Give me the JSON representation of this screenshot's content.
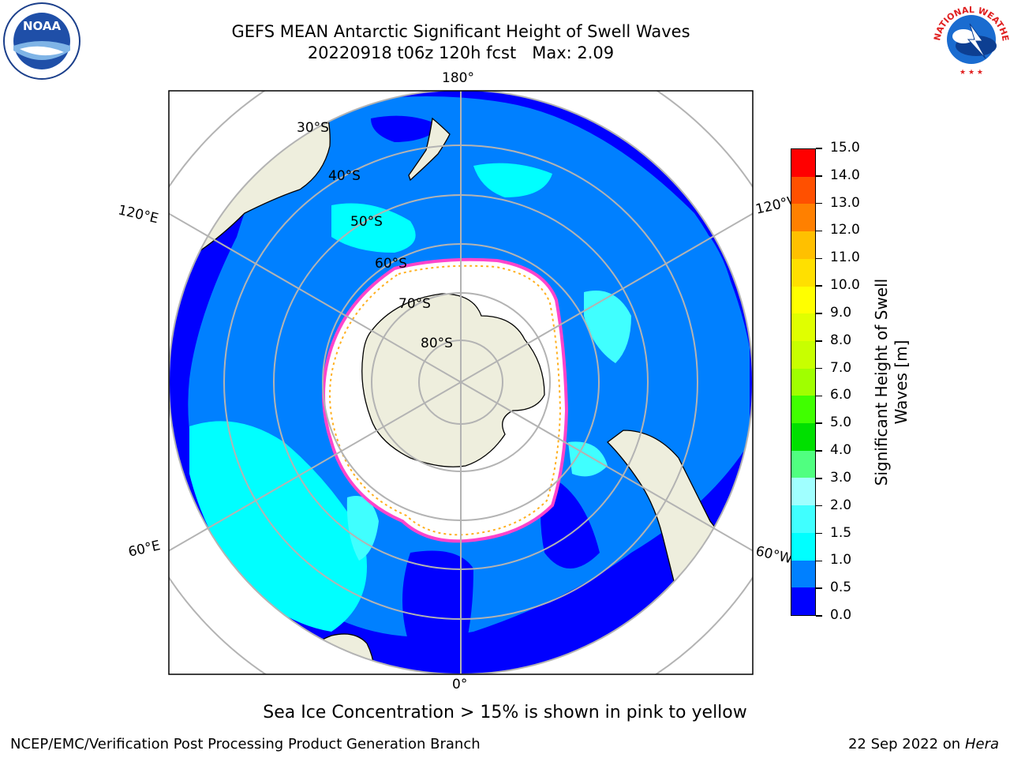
{
  "header": {
    "title_line1": "GEFS MEAN Antarctic Significant Height of Swell Waves",
    "title_line2": "20220918 t06z 120h fcst   Max: 2.09"
  },
  "logos": {
    "left": {
      "icon": "noaa-logo-icon",
      "text": "NOAA"
    },
    "right": {
      "icon": "nws-logo-icon",
      "text": "NATIONAL WEATHER SERVICE"
    }
  },
  "map": {
    "projection": "south polar stereographic",
    "longitude_labels": {
      "top": "180°",
      "bottom": "0°",
      "upper_left": "120°E",
      "lower_left": "60°E",
      "upper_right": "120°W",
      "lower_right": "60°W"
    },
    "latitude_labels": [
      "30°S",
      "40°S",
      "50°S",
      "60°S",
      "70°S",
      "80°S"
    ],
    "colors": {
      "land": "#eeeedd",
      "sea_ice": "#ffffff",
      "graticule": "#b3b3b3",
      "ice_edge": [
        "#ff44cc",
        "#ffb020"
      ]
    }
  },
  "colorbar": {
    "title": "Significant Height of Swell Waves [m]",
    "tick_labels": [
      "0.0",
      "0.5",
      "1.0",
      "1.5",
      "2.0",
      "3.0",
      "4.0",
      "5.0",
      "6.0",
      "7.0",
      "8.0",
      "9.0",
      "10.0",
      "11.0",
      "12.0",
      "13.0",
      "14.0",
      "15.0"
    ],
    "colors": [
      "#0000ff",
      "#0080ff",
      "#00ffff",
      "#40ffff",
      "#a0ffff",
      "#50ff80",
      "#00e000",
      "#40ff00",
      "#a0ff00",
      "#c8ff00",
      "#e0ff00",
      "#ffff00",
      "#ffe000",
      "#ffc000",
      "#ff8000",
      "#ff5000",
      "#ff0000"
    ]
  },
  "caption": "Sea Ice Concentration > 15% is shown in pink to yellow",
  "footer": {
    "left": "NCEP/EMC/Verification Post Processing Product Generation Branch",
    "right_date": "22 Sep 2022 on",
    "right_host": "Hera"
  }
}
